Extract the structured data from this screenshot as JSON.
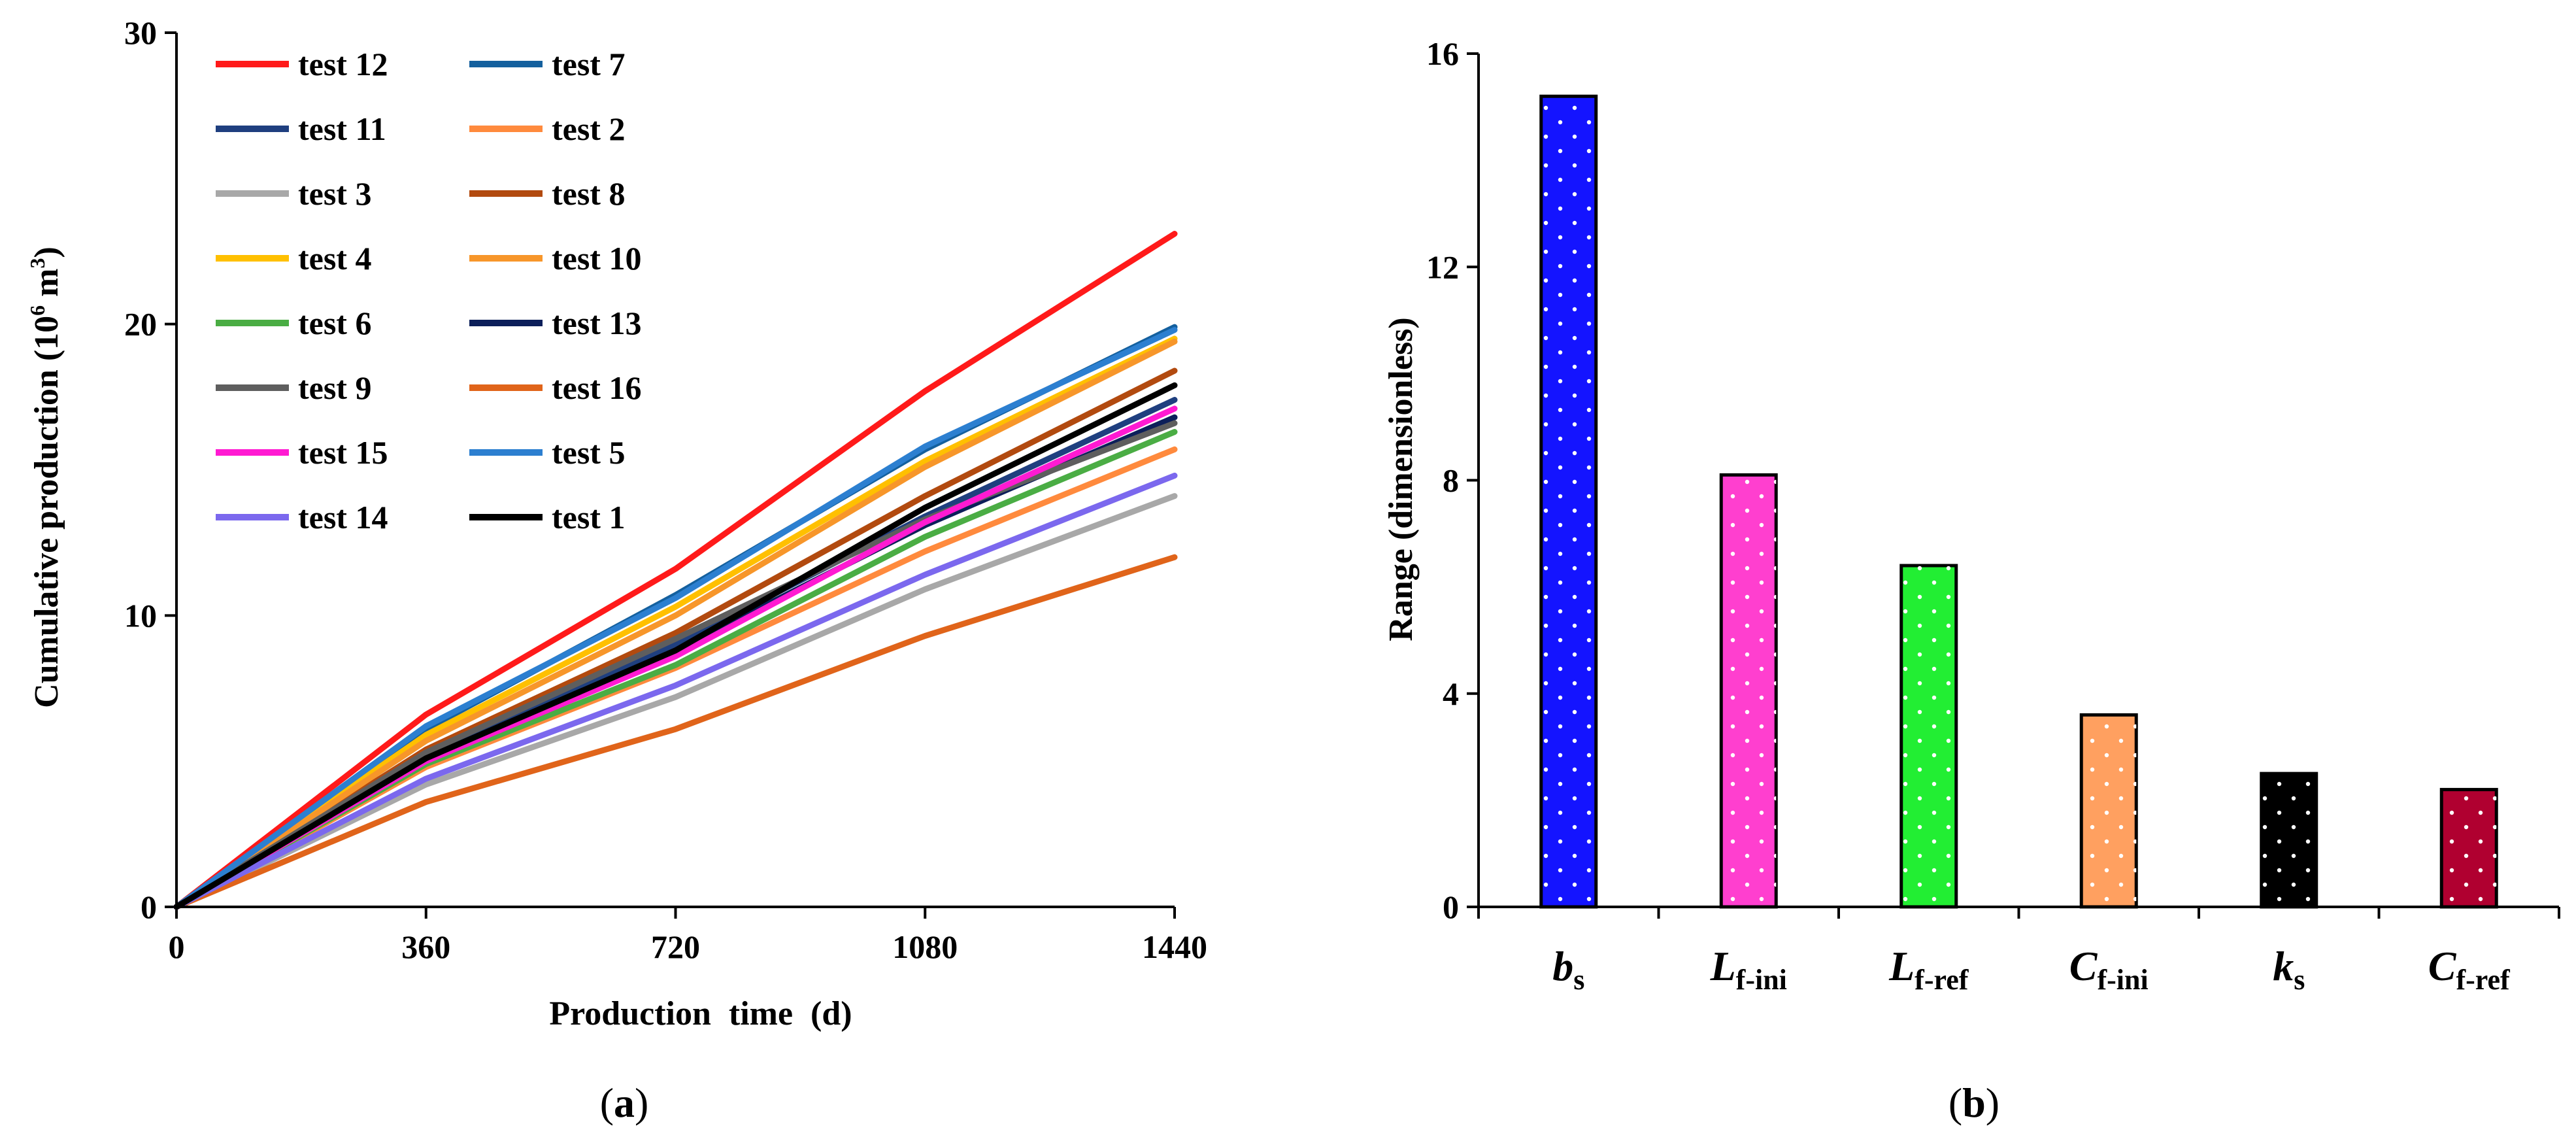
{
  "panel_a": {
    "caption": {
      "open": "(",
      "letter": "a",
      "close": ")"
    },
    "chart_data": {
      "type": "line",
      "title": "",
      "xlabel": "Production time (d)",
      "ylabel_prefix": "Cumulative production (10",
      "ylabel_exp": "6",
      "ylabel_unit": " m",
      "ylabel_unit_exp": "3",
      "ylabel_suffix": ")",
      "xlim": [
        0,
        1440
      ],
      "ylim": [
        0,
        30
      ],
      "xticks": [
        0,
        360,
        720,
        1080,
        1440
      ],
      "yticks": [
        0,
        10,
        20,
        30
      ],
      "legend_position": "top-left",
      "x": [
        0,
        360,
        720,
        1080,
        1440
      ],
      "series": [
        {
          "name": "test 12",
          "color": "#ff1a1a",
          "values": [
            0,
            6.6,
            11.6,
            17.7,
            23.1
          ]
        },
        {
          "name": "test 7",
          "color": "#14609e",
          "values": [
            0,
            6.1,
            10.7,
            15.7,
            19.9
          ]
        },
        {
          "name": "test 11",
          "color": "#1f3f7f",
          "values": [
            0,
            5.2,
            9.0,
            13.4,
            17.4
          ]
        },
        {
          "name": "test 2",
          "color": "#ff8a3d",
          "values": [
            0,
            4.8,
            8.2,
            12.2,
            15.7
          ]
        },
        {
          "name": "test 3",
          "color": "#a8a8a8",
          "values": [
            0,
            4.2,
            7.2,
            10.9,
            14.1
          ]
        },
        {
          "name": "test 8",
          "color": "#b24a0f",
          "values": [
            0,
            5.4,
            9.4,
            14.1,
            18.4
          ]
        },
        {
          "name": "test 4",
          "color": "#ffc000",
          "values": [
            0,
            5.9,
            10.3,
            15.3,
            19.5
          ]
        },
        {
          "name": "test 10",
          "color": "#f7962a",
          "values": [
            0,
            5.7,
            10.0,
            15.1,
            19.4
          ]
        },
        {
          "name": "test 6",
          "color": "#4aad44",
          "values": [
            0,
            4.9,
            8.3,
            12.7,
            16.3
          ]
        },
        {
          "name": "test 13",
          "color": "#0c1f5a",
          "values": [
            0,
            5.1,
            8.8,
            13.1,
            16.8
          ]
        },
        {
          "name": "test 9",
          "color": "#5e5e5e",
          "values": [
            0,
            5.3,
            9.2,
            13.3,
            16.6
          ]
        },
        {
          "name": "test 16",
          "color": "#e0641a",
          "values": [
            0,
            3.6,
            6.1,
            9.3,
            12.0
          ]
        },
        {
          "name": "test 15",
          "color": "#ff1ad2",
          "values": [
            0,
            5.0,
            8.6,
            13.2,
            17.1
          ]
        },
        {
          "name": "test 5",
          "color": "#2c7fd0",
          "values": [
            0,
            6.2,
            10.6,
            15.8,
            19.8
          ]
        },
        {
          "name": "test 14",
          "color": "#7b68ee",
          "values": [
            0,
            4.4,
            7.6,
            11.4,
            14.8
          ]
        },
        {
          "name": "test 1",
          "color": "#000000",
          "values": [
            0,
            5.1,
            8.8,
            13.7,
            17.9
          ]
        }
      ]
    }
  },
  "panel_b": {
    "caption": {
      "open": "(",
      "letter": "b",
      "close": ")"
    },
    "chart_data": {
      "type": "bar",
      "title": "",
      "xlabel": "",
      "ylabel": "Range (dimensionless)",
      "ylim": [
        0,
        16
      ],
      "yticks": [
        0,
        4,
        8,
        12,
        16
      ],
      "categories": [
        {
          "main": "b",
          "sub": "s"
        },
        {
          "main": "L",
          "sub": "f-ini"
        },
        {
          "main": "L",
          "sub": "f-ref"
        },
        {
          "main": "C",
          "sub": "f-ini"
        },
        {
          "main": "k",
          "sub": "s"
        },
        {
          "main": "C",
          "sub": "f-ref"
        }
      ],
      "values": [
        15.2,
        8.1,
        6.4,
        3.6,
        2.5,
        2.2
      ],
      "colors": [
        "#1414ff",
        "#ff3fcf",
        "#22ee33",
        "#ffa060",
        "#000000",
        "#b00030"
      ]
    }
  }
}
